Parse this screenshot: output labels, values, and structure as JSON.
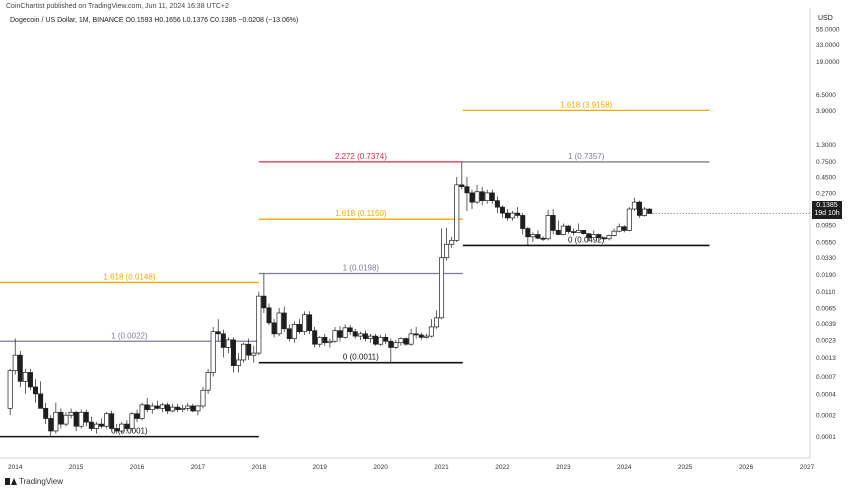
{
  "header": {
    "published": "CoinChartist published on TradingView.com, Jun 11, 2024 16:38 UTC+2",
    "symbol_line": "Dogecoin / US Dollar, 1M, BINANCE  O0.1593  H0.1656  L0.1376  C0.1385  −0.0208 (−13.06%)",
    "currency": "USD"
  },
  "footer": {
    "brand": "TradingView"
  },
  "price_badge": {
    "price": "0.1385",
    "countdown": "19d 10h"
  },
  "colors": {
    "gold": "#f2a900",
    "red": "#e0283c",
    "gray": "#7d7d99",
    "black": "#111111",
    "candle": "#1e1e1e"
  },
  "chart_data": {
    "type": "candlestick",
    "yscale": "log",
    "ylim": [
      5e-05,
      95
    ],
    "xlim": [
      2013.75,
      2027.05
    ],
    "y_ticks": [
      "55.0000",
      "33.0000",
      "19.0000",
      "6.5000",
      "3.9000",
      "1.3000",
      "0.7500",
      "0.4500",
      "0.2700",
      "0.0950",
      "0.0550",
      "0.0330",
      "0.0190",
      "0.0110",
      "0.0065",
      "0.0039",
      "0.0023",
      "0.0013",
      "0.0007",
      "0.0004",
      "0.0002",
      "0.0001"
    ],
    "x_ticks": [
      "2014",
      "2015",
      "2016",
      "2017",
      "2018",
      "2019",
      "2020",
      "2021",
      "2022",
      "2023",
      "2024",
      "2025",
      "2026",
      "2027"
    ],
    "levels": [
      {
        "label": "0 (0.0001)",
        "value": 0.0001,
        "x0": 2013.75,
        "x1": 2018.0,
        "color": "black"
      },
      {
        "label": "1 (0.0022)",
        "value": 0.0022,
        "x0": 2013.75,
        "x1": 2018.0,
        "color": "gray"
      },
      {
        "label": "1.618 (0.0148)",
        "value": 0.0148,
        "x0": 2013.75,
        "x1": 2018.0,
        "color": "gold"
      },
      {
        "label": "0 (0.0011)",
        "value": 0.0011,
        "x0": 2018.0,
        "x1": 2021.35,
        "color": "black"
      },
      {
        "label": "1 (0.0198)",
        "value": 0.0198,
        "x0": 2018.0,
        "x1": 2021.35,
        "color": "gray"
      },
      {
        "label": "1.618 (0.1150)",
        "value": 0.115,
        "x0": 2018.0,
        "x1": 2021.35,
        "color": "gold"
      },
      {
        "label": "2.272 (0.7374)",
        "value": 0.7374,
        "x0": 2018.0,
        "x1": 2021.35,
        "color": "red"
      },
      {
        "label": "0 (0.0492)",
        "value": 0.0492,
        "x0": 2021.35,
        "x1": 2025.4,
        "color": "black"
      },
      {
        "label": "1 (0.7357)",
        "value": 0.7357,
        "x0": 2021.35,
        "x1": 2025.4,
        "color": "gray"
      },
      {
        "label": "1.618 (3.9158)",
        "value": 3.9158,
        "x0": 2021.35,
        "x1": 2025.4,
        "color": "gold"
      }
    ],
    "candles": [
      {
        "t": 2013.917,
        "o": 0.00025,
        "h": 0.0009,
        "l": 0.0002,
        "c": 0.00085
      },
      {
        "t": 2014.0,
        "o": 0.00085,
        "h": 0.0024,
        "l": 0.00075,
        "c": 0.0014
      },
      {
        "t": 2014.083,
        "o": 0.0014,
        "h": 0.0016,
        "l": 0.0005,
        "c": 0.0006
      },
      {
        "t": 2014.167,
        "o": 0.0006,
        "h": 0.0009,
        "l": 0.0004,
        "c": 0.0008
      },
      {
        "t": 2014.25,
        "o": 0.0008,
        "h": 0.0009,
        "l": 0.00045,
        "c": 0.0005
      },
      {
        "t": 2014.333,
        "o": 0.0005,
        "h": 0.00065,
        "l": 0.0003,
        "c": 0.0004
      },
      {
        "t": 2014.417,
        "o": 0.0004,
        "h": 0.0006,
        "l": 0.0003,
        "c": 0.00025
      },
      {
        "t": 2014.5,
        "o": 0.00025,
        "h": 0.0003,
        "l": 0.00015,
        "c": 0.00018
      },
      {
        "t": 2014.583,
        "o": 0.00018,
        "h": 0.0002,
        "l": 0.0001,
        "c": 0.00012
      },
      {
        "t": 2014.667,
        "o": 0.00012,
        "h": 0.0003,
        "l": 0.00011,
        "c": 0.00022
      },
      {
        "t": 2014.75,
        "o": 0.00022,
        "h": 0.00025,
        "l": 0.00013,
        "c": 0.00015
      },
      {
        "t": 2014.833,
        "o": 0.00015,
        "h": 0.00022,
        "l": 0.00014,
        "c": 0.0002
      },
      {
        "t": 2014.917,
        "o": 0.0002,
        "h": 0.00025,
        "l": 0.00018,
        "c": 0.00022
      },
      {
        "t": 2015.0,
        "o": 0.00022,
        "h": 0.00023,
        "l": 0.00012,
        "c": 0.00014
      },
      {
        "t": 2015.083,
        "o": 0.00014,
        "h": 0.00024,
        "l": 0.00013,
        "c": 0.00022
      },
      {
        "t": 2015.167,
        "o": 0.00022,
        "h": 0.00024,
        "l": 0.00014,
        "c": 0.00016
      },
      {
        "t": 2015.25,
        "o": 0.00016,
        "h": 0.00019,
        "l": 0.00012,
        "c": 0.00013
      },
      {
        "t": 2015.333,
        "o": 0.00013,
        "h": 0.00016,
        "l": 0.00011,
        "c": 0.00015
      },
      {
        "t": 2015.417,
        "o": 0.00015,
        "h": 0.00018,
        "l": 0.00013,
        "c": 0.00014
      },
      {
        "t": 2015.5,
        "o": 0.00014,
        "h": 0.00022,
        "l": 0.00013,
        "c": 0.00021
      },
      {
        "t": 2015.583,
        "o": 0.00021,
        "h": 0.00023,
        "l": 0.00012,
        "c": 0.00013
      },
      {
        "t": 2015.667,
        "o": 0.00013,
        "h": 0.00015,
        "l": 0.00011,
        "c": 0.00012
      },
      {
        "t": 2015.75,
        "o": 0.00012,
        "h": 0.00016,
        "l": 0.00011,
        "c": 0.00015
      },
      {
        "t": 2015.833,
        "o": 0.00015,
        "h": 0.00017,
        "l": 0.00012,
        "c": 0.00013
      },
      {
        "t": 2015.917,
        "o": 0.00013,
        "h": 0.00022,
        "l": 0.00012,
        "c": 0.00021
      },
      {
        "t": 2016.0,
        "o": 0.00021,
        "h": 0.00024,
        "l": 0.00016,
        "c": 0.00018
      },
      {
        "t": 2016.083,
        "o": 0.00018,
        "h": 0.0003,
        "l": 0.00017,
        "c": 0.00028
      },
      {
        "t": 2016.167,
        "o": 0.00028,
        "h": 0.00035,
        "l": 0.00022,
        "c": 0.00024
      },
      {
        "t": 2016.25,
        "o": 0.00024,
        "h": 0.0003,
        "l": 0.00021,
        "c": 0.00027
      },
      {
        "t": 2016.333,
        "o": 0.00027,
        "h": 0.00032,
        "l": 0.00024,
        "c": 0.00025
      },
      {
        "t": 2016.417,
        "o": 0.00025,
        "h": 0.0003,
        "l": 0.00022,
        "c": 0.00028
      },
      {
        "t": 2016.5,
        "o": 0.00028,
        "h": 0.0003,
        "l": 0.00021,
        "c": 0.00023
      },
      {
        "t": 2016.583,
        "o": 0.00023,
        "h": 0.00029,
        "l": 0.00022,
        "c": 0.00026
      },
      {
        "t": 2016.667,
        "o": 0.00026,
        "h": 0.00029,
        "l": 0.00022,
        "c": 0.00024
      },
      {
        "t": 2016.75,
        "o": 0.00024,
        "h": 0.00028,
        "l": 0.00022,
        "c": 0.00025
      },
      {
        "t": 2016.833,
        "o": 0.00025,
        "h": 0.0003,
        "l": 0.00023,
        "c": 0.00027
      },
      {
        "t": 2016.917,
        "o": 0.00027,
        "h": 0.00029,
        "l": 0.00022,
        "c": 0.00023
      },
      {
        "t": 2017.0,
        "o": 0.00023,
        "h": 0.00028,
        "l": 0.0002,
        "c": 0.00027
      },
      {
        "t": 2017.083,
        "o": 0.00027,
        "h": 0.0005,
        "l": 0.00025,
        "c": 0.00045
      },
      {
        "t": 2017.167,
        "o": 0.00045,
        "h": 0.0009,
        "l": 0.0004,
        "c": 0.0008
      },
      {
        "t": 2017.25,
        "o": 0.0008,
        "h": 0.0035,
        "l": 0.0007,
        "c": 0.003
      },
      {
        "t": 2017.333,
        "o": 0.003,
        "h": 0.0045,
        "l": 0.0022,
        "c": 0.0028
      },
      {
        "t": 2017.417,
        "o": 0.0028,
        "h": 0.0032,
        "l": 0.0013,
        "c": 0.0018
      },
      {
        "t": 2017.5,
        "o": 0.0018,
        "h": 0.0025,
        "l": 0.0015,
        "c": 0.0023
      },
      {
        "t": 2017.583,
        "o": 0.0023,
        "h": 0.0025,
        "l": 0.0008,
        "c": 0.001
      },
      {
        "t": 2017.667,
        "o": 0.001,
        "h": 0.0015,
        "l": 0.0008,
        "c": 0.0012
      },
      {
        "t": 2017.75,
        "o": 0.0012,
        "h": 0.0021,
        "l": 0.0011,
        "c": 0.002
      },
      {
        "t": 2017.833,
        "o": 0.002,
        "h": 0.0024,
        "l": 0.0012,
        "c": 0.0014
      },
      {
        "t": 2017.917,
        "o": 0.0014,
        "h": 0.0019,
        "l": 0.0011,
        "c": 0.0015
      },
      {
        "t": 2018.0,
        "o": 0.0015,
        "h": 0.011,
        "l": 0.0014,
        "c": 0.0095
      },
      {
        "t": 2018.083,
        "o": 0.0095,
        "h": 0.0198,
        "l": 0.0055,
        "c": 0.0065
      },
      {
        "t": 2018.167,
        "o": 0.0065,
        "h": 0.0075,
        "l": 0.0037,
        "c": 0.004
      },
      {
        "t": 2018.25,
        "o": 0.004,
        "h": 0.0045,
        "l": 0.0025,
        "c": 0.0028
      },
      {
        "t": 2018.333,
        "o": 0.0028,
        "h": 0.0065,
        "l": 0.0026,
        "c": 0.0055
      },
      {
        "t": 2018.417,
        "o": 0.0055,
        "h": 0.0068,
        "l": 0.003,
        "c": 0.0033
      },
      {
        "t": 2018.5,
        "o": 0.0033,
        "h": 0.0038,
        "l": 0.0022,
        "c": 0.0024
      },
      {
        "t": 2018.583,
        "o": 0.0024,
        "h": 0.0042,
        "l": 0.0021,
        "c": 0.0038
      },
      {
        "t": 2018.667,
        "o": 0.0038,
        "h": 0.0045,
        "l": 0.0028,
        "c": 0.003
      },
      {
        "t": 2018.75,
        "o": 0.003,
        "h": 0.0058,
        "l": 0.0027,
        "c": 0.0052
      },
      {
        "t": 2018.833,
        "o": 0.0052,
        "h": 0.0058,
        "l": 0.0028,
        "c": 0.0031
      },
      {
        "t": 2018.917,
        "o": 0.0031,
        "h": 0.0035,
        "l": 0.0018,
        "c": 0.002
      },
      {
        "t": 2019.0,
        "o": 0.002,
        "h": 0.0026,
        "l": 0.0018,
        "c": 0.0025
      },
      {
        "t": 2019.083,
        "o": 0.0025,
        "h": 0.0028,
        "l": 0.0019,
        "c": 0.0021
      },
      {
        "t": 2019.167,
        "o": 0.0021,
        "h": 0.0024,
        "l": 0.0018,
        "c": 0.0022
      },
      {
        "t": 2019.25,
        "o": 0.0022,
        "h": 0.0035,
        "l": 0.0021,
        "c": 0.0031
      },
      {
        "t": 2019.333,
        "o": 0.0031,
        "h": 0.0036,
        "l": 0.0022,
        "c": 0.0025
      },
      {
        "t": 2019.417,
        "o": 0.0025,
        "h": 0.0038,
        "l": 0.0024,
        "c": 0.0034
      },
      {
        "t": 2019.5,
        "o": 0.0034,
        "h": 0.0037,
        "l": 0.0027,
        "c": 0.003
      },
      {
        "t": 2019.583,
        "o": 0.003,
        "h": 0.0033,
        "l": 0.0024,
        "c": 0.0026
      },
      {
        "t": 2019.667,
        "o": 0.0026,
        "h": 0.003,
        "l": 0.0023,
        "c": 0.0028
      },
      {
        "t": 2019.75,
        "o": 0.0028,
        "h": 0.0031,
        "l": 0.0022,
        "c": 0.0024
      },
      {
        "t": 2019.833,
        "o": 0.0024,
        "h": 0.0028,
        "l": 0.0021,
        "c": 0.0026
      },
      {
        "t": 2019.917,
        "o": 0.0026,
        "h": 0.0028,
        "l": 0.0019,
        "c": 0.002
      },
      {
        "t": 2020.0,
        "o": 0.002,
        "h": 0.0027,
        "l": 0.0019,
        "c": 0.0025
      },
      {
        "t": 2020.083,
        "o": 0.0025,
        "h": 0.0028,
        "l": 0.002,
        "c": 0.0022
      },
      {
        "t": 2020.167,
        "o": 0.0022,
        "h": 0.0024,
        "l": 0.0011,
        "c": 0.0018
      },
      {
        "t": 2020.25,
        "o": 0.0018,
        "h": 0.0023,
        "l": 0.0017,
        "c": 0.0021
      },
      {
        "t": 2020.333,
        "o": 0.0021,
        "h": 0.0025,
        "l": 0.0019,
        "c": 0.0024
      },
      {
        "t": 2020.417,
        "o": 0.0024,
        "h": 0.0025,
        "l": 0.0019,
        "c": 0.002
      },
      {
        "t": 2020.5,
        "o": 0.002,
        "h": 0.0033,
        "l": 0.0019,
        "c": 0.0028
      },
      {
        "t": 2020.583,
        "o": 0.0028,
        "h": 0.0035,
        "l": 0.0024,
        "c": 0.0027
      },
      {
        "t": 2020.667,
        "o": 0.0027,
        "h": 0.0029,
        "l": 0.0023,
        "c": 0.0025
      },
      {
        "t": 2020.75,
        "o": 0.0025,
        "h": 0.0028,
        "l": 0.0024,
        "c": 0.0026
      },
      {
        "t": 2020.833,
        "o": 0.0026,
        "h": 0.0045,
        "l": 0.0025,
        "c": 0.0035
      },
      {
        "t": 2020.917,
        "o": 0.0035,
        "h": 0.006,
        "l": 0.0033,
        "c": 0.0047
      },
      {
        "t": 2021.0,
        "o": 0.0047,
        "h": 0.085,
        "l": 0.0045,
        "c": 0.033
      },
      {
        "t": 2021.083,
        "o": 0.033,
        "h": 0.087,
        "l": 0.03,
        "c": 0.051
      },
      {
        "t": 2021.167,
        "o": 0.051,
        "h": 0.065,
        "l": 0.045,
        "c": 0.058
      },
      {
        "t": 2021.25,
        "o": 0.058,
        "h": 0.45,
        "l": 0.055,
        "c": 0.35
      },
      {
        "t": 2021.333,
        "o": 0.35,
        "h": 0.7374,
        "l": 0.3,
        "c": 0.33
      },
      {
        "t": 2021.417,
        "o": 0.33,
        "h": 0.45,
        "l": 0.15,
        "c": 0.27
      },
      {
        "t": 2021.5,
        "o": 0.27,
        "h": 0.3,
        "l": 0.16,
        "c": 0.2
      },
      {
        "t": 2021.583,
        "o": 0.2,
        "h": 0.35,
        "l": 0.19,
        "c": 0.28
      },
      {
        "t": 2021.667,
        "o": 0.28,
        "h": 0.33,
        "l": 0.18,
        "c": 0.21
      },
      {
        "t": 2021.75,
        "o": 0.21,
        "h": 0.3,
        "l": 0.19,
        "c": 0.27
      },
      {
        "t": 2021.833,
        "o": 0.27,
        "h": 0.3,
        "l": 0.19,
        "c": 0.21
      },
      {
        "t": 2021.917,
        "o": 0.21,
        "h": 0.24,
        "l": 0.14,
        "c": 0.17
      },
      {
        "t": 2022.0,
        "o": 0.17,
        "h": 0.18,
        "l": 0.12,
        "c": 0.14
      },
      {
        "t": 2022.083,
        "o": 0.14,
        "h": 0.16,
        "l": 0.11,
        "c": 0.12
      },
      {
        "t": 2022.167,
        "o": 0.12,
        "h": 0.15,
        "l": 0.11,
        "c": 0.14
      },
      {
        "t": 2022.25,
        "o": 0.14,
        "h": 0.17,
        "l": 0.12,
        "c": 0.13
      },
      {
        "t": 2022.333,
        "o": 0.13,
        "h": 0.14,
        "l": 0.07,
        "c": 0.085
      },
      {
        "t": 2022.417,
        "o": 0.085,
        "h": 0.09,
        "l": 0.05,
        "c": 0.065
      },
      {
        "t": 2022.5,
        "o": 0.065,
        "h": 0.075,
        "l": 0.055,
        "c": 0.07
      },
      {
        "t": 2022.583,
        "o": 0.07,
        "h": 0.08,
        "l": 0.06,
        "c": 0.062
      },
      {
        "t": 2022.667,
        "o": 0.062,
        "h": 0.066,
        "l": 0.057,
        "c": 0.061
      },
      {
        "t": 2022.75,
        "o": 0.061,
        "h": 0.155,
        "l": 0.058,
        "c": 0.13
      },
      {
        "t": 2022.833,
        "o": 0.13,
        "h": 0.16,
        "l": 0.07,
        "c": 0.08
      },
      {
        "t": 2022.917,
        "o": 0.08,
        "h": 0.11,
        "l": 0.069,
        "c": 0.07
      },
      {
        "t": 2023.0,
        "o": 0.07,
        "h": 0.1,
        "l": 0.068,
        "c": 0.092
      },
      {
        "t": 2023.083,
        "o": 0.092,
        "h": 0.095,
        "l": 0.072,
        "c": 0.077
      },
      {
        "t": 2023.167,
        "o": 0.077,
        "h": 0.085,
        "l": 0.068,
        "c": 0.075
      },
      {
        "t": 2023.25,
        "o": 0.075,
        "h": 0.1,
        "l": 0.074,
        "c": 0.08
      },
      {
        "t": 2023.333,
        "o": 0.08,
        "h": 0.081,
        "l": 0.07,
        "c": 0.072
      },
      {
        "t": 2023.417,
        "o": 0.072,
        "h": 0.073,
        "l": 0.056,
        "c": 0.063
      },
      {
        "t": 2023.5,
        "o": 0.063,
        "h": 0.08,
        "l": 0.062,
        "c": 0.07
      },
      {
        "t": 2023.583,
        "o": 0.07,
        "h": 0.072,
        "l": 0.058,
        "c": 0.063
      },
      {
        "t": 2023.667,
        "o": 0.063,
        "h": 0.065,
        "l": 0.058,
        "c": 0.061
      },
      {
        "t": 2023.75,
        "o": 0.061,
        "h": 0.07,
        "l": 0.058,
        "c": 0.068
      },
      {
        "t": 2023.833,
        "o": 0.068,
        "h": 0.085,
        "l": 0.066,
        "c": 0.078
      },
      {
        "t": 2023.917,
        "o": 0.078,
        "h": 0.1,
        "l": 0.075,
        "c": 0.09
      },
      {
        "t": 2024.0,
        "o": 0.09,
        "h": 0.095,
        "l": 0.075,
        "c": 0.08
      },
      {
        "t": 2024.083,
        "o": 0.08,
        "h": 0.17,
        "l": 0.078,
        "c": 0.16
      },
      {
        "t": 2024.167,
        "o": 0.16,
        "h": 0.23,
        "l": 0.15,
        "c": 0.2
      },
      {
        "t": 2024.25,
        "o": 0.2,
        "h": 0.21,
        "l": 0.12,
        "c": 0.13
      },
      {
        "t": 2024.333,
        "o": 0.13,
        "h": 0.17,
        "l": 0.125,
        "c": 0.16
      },
      {
        "t": 2024.417,
        "o": 0.1593,
        "h": 0.1656,
        "l": 0.1376,
        "c": 0.1385
      }
    ]
  }
}
